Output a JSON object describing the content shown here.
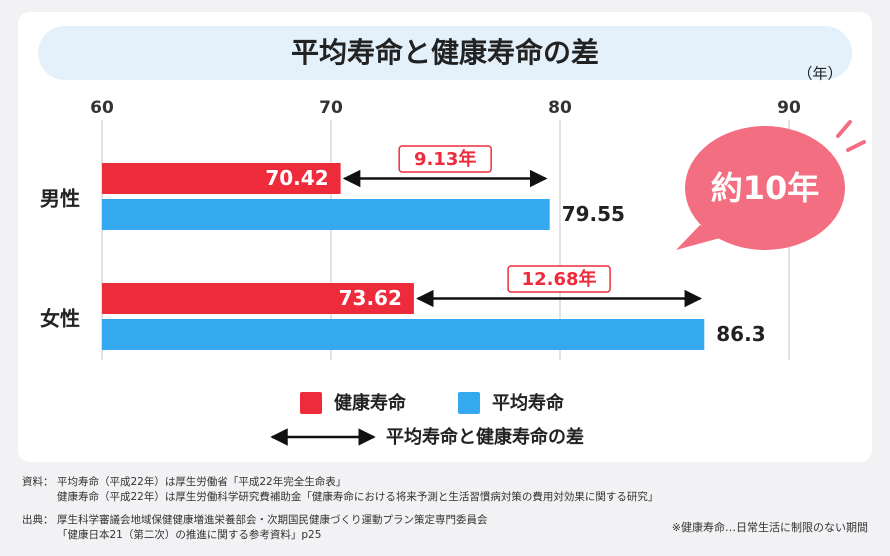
{
  "chart_data": {
    "type": "bar",
    "orientation": "horizontal",
    "title": "平均寿命と健康寿命の差",
    "unit_label": "（年）",
    "categories": [
      "男性",
      "女性"
    ],
    "series": [
      {
        "name": "健康寿命",
        "color": "#ee2b3b",
        "values": [
          70.42,
          73.62
        ]
      },
      {
        "name": "平均寿命",
        "color": "#35a9ef",
        "values": [
          79.55,
          86.3
        ]
      }
    ],
    "differences": {
      "name": "平均寿命と健康寿命の差",
      "values": [
        9.13,
        12.68
      ],
      "value_labels": [
        "9.13年",
        "12.68年"
      ]
    },
    "xlim": [
      60,
      90
    ],
    "xticks": [
      60,
      70,
      80,
      90
    ],
    "grid": true,
    "badge": "約10年"
  },
  "footnotes": {
    "sources": [
      {
        "label": "資料：",
        "lines": [
          "平均寿命（平成22年）は厚生労働省「平成22年完全生命表」",
          "健康寿命（平成22年）は厚生労働科学研究費補助金「健康寿命における将来予測と生活習慣病対策の費用対効果に関する研究」"
        ]
      },
      {
        "label": "出典：",
        "lines": [
          "厚生科学審議会地域保健健康増進栄養部会・次期国民健康づくり運動プラン策定専門委員会",
          "「健康日本21（第二次）の推進に関する参考資料」p25"
        ]
      }
    ],
    "note": "※健康寿命…日常生活に制限のない期間"
  }
}
